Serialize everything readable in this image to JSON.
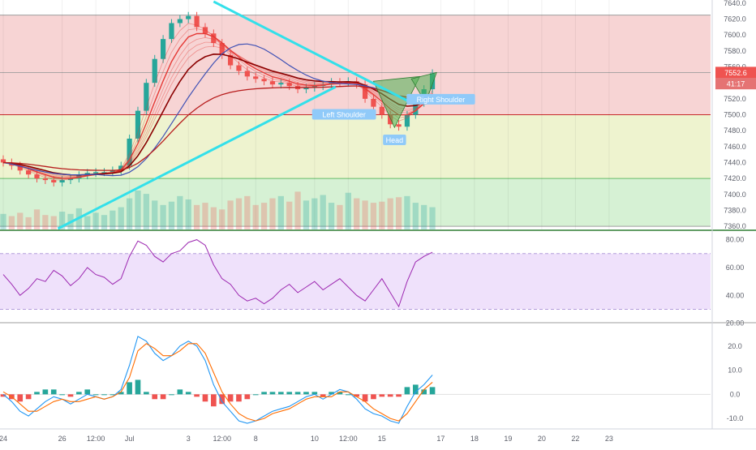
{
  "colors": {
    "zone_red": "#f7d4d4",
    "zone_yellow": "#eef3cf",
    "zone_green": "#d6f1d4",
    "trendline": "#33e0ea",
    "ema_fast": "#e53935",
    "ema_slow": "#8b0000",
    "sma_blue": "#3f51b5",
    "candle_up": "#26a69a",
    "candle_down": "#ef5350",
    "rsi_line": "#9c27b0",
    "rsi_band": "#efe1fb",
    "macd_line": "#2196f3",
    "signal_line": "#ff6d00",
    "price_label_bg": "#ef5350",
    "pattern_fill": "#4caf50",
    "annotation_bg": "#90caf9"
  },
  "chart_data": [
    {
      "type": "candlestick",
      "panel": "price",
      "y_ticks": [
        "7640.0",
        "7620.0",
        "7600.0",
        "7580.0",
        "7560.0",
        "7540.0",
        "7520.0",
        "7500.0",
        "7480.0",
        "7460.0",
        "7440.0",
        "7420.0",
        "7400.0",
        "7380.0",
        "7360.0"
      ],
      "ylim": [
        7356,
        7644
      ],
      "x_ticks": [
        {
          "label": "24",
          "i": 0
        },
        {
          "label": "26",
          "i": 7
        },
        {
          "label": "12:00",
          "i": 11
        },
        {
          "label": "Jul",
          "i": 15
        },
        {
          "label": "3",
          "i": 22
        },
        {
          "label": "12:00",
          "i": 26
        },
        {
          "label": "8",
          "i": 30
        },
        {
          "label": "10",
          "i": 37
        },
        {
          "label": "12:00",
          "i": 41
        },
        {
          "label": "15",
          "i": 45
        },
        {
          "label": "17",
          "i": 52
        },
        {
          "label": "18",
          "i": 56
        },
        {
          "label": "19",
          "i": 60
        },
        {
          "label": "20",
          "i": 64
        },
        {
          "label": "22",
          "i": 68
        },
        {
          "label": "23",
          "i": 72
        }
      ],
      "x_count": 76,
      "zones": [
        {
          "from": 7500,
          "to": 7625,
          "color": "zone_red"
        },
        {
          "from": 7420,
          "to": 7500,
          "color": "zone_yellow"
        },
        {
          "from": 7360,
          "to": 7420,
          "color": "zone_green"
        }
      ],
      "horizontal_lines": [
        7625,
        7553,
        7500,
        7420,
        7360
      ],
      "price_labels": [
        "7552.6",
        "41:17"
      ],
      "close": [
        7440,
        7436,
        7430,
        7425,
        7420,
        7418,
        7415,
        7418,
        7420,
        7424,
        7427,
        7428,
        7428,
        7430,
        7436,
        7470,
        7505,
        7540,
        7570,
        7595,
        7615,
        7620,
        7624,
        7610,
        7602,
        7590,
        7575,
        7562,
        7555,
        7548,
        7545,
        7542,
        7538,
        7540,
        7536,
        7532,
        7534,
        7536,
        7538,
        7541,
        7540,
        7542,
        7538,
        7520,
        7510,
        7500,
        7488,
        7485,
        7500,
        7515,
        7532,
        7552
      ],
      "trendlines": [
        {
          "from": [
            6.5,
            7357
          ],
          "to": [
            39.5,
            7535
          ]
        },
        {
          "from": [
            25,
            7642
          ],
          "to": [
            48.5,
            7515
          ]
        }
      ],
      "pattern": {
        "name": "Inverse head and shoulders",
        "labels": [
          "Left Shoulder",
          "Head",
          "Right Shoulder"
        ]
      },
      "volume": [
        14,
        12,
        15,
        11,
        18,
        13,
        12,
        16,
        14,
        19,
        12,
        15,
        13,
        17,
        20,
        28,
        35,
        32,
        26,
        22,
        25,
        30,
        27,
        22,
        24,
        20,
        18,
        26,
        28,
        30,
        22,
        24,
        28,
        30,
        25,
        34,
        26,
        28,
        31,
        24,
        22,
        33,
        28,
        26,
        24,
        25,
        28,
        29,
        30,
        24,
        22,
        20
      ]
    },
    {
      "type": "line",
      "panel": "rsi",
      "y_ticks": [
        "80.00",
        "60.00",
        "40.00",
        "20.00"
      ],
      "ylim": [
        21,
        85
      ],
      "band": [
        30,
        70
      ],
      "values": [
        55,
        48,
        40,
        45,
        52,
        50,
        58,
        54,
        47,
        52,
        60,
        55,
        53,
        48,
        52,
        68,
        79,
        76,
        68,
        64,
        70,
        72,
        78,
        80,
        76,
        62,
        52,
        48,
        40,
        36,
        38,
        34,
        38,
        44,
        48,
        42,
        46,
        50,
        44,
        48,
        52,
        46,
        40,
        36,
        44,
        52,
        42,
        32,
        50,
        64,
        68,
        71
      ]
    },
    {
      "type": "line",
      "panel": "macd",
      "y_ticks": [
        "20.0",
        "10.0",
        "0.0",
        "-10.0"
      ],
      "ylim": [
        -14,
        29
      ],
      "series": [
        {
          "color_key": "macd_line",
          "values": [
            0,
            -3,
            -7,
            -9,
            -6,
            -3,
            -1,
            -2,
            -4,
            -2,
            0,
            -1,
            -2,
            -1,
            2,
            12,
            24,
            22,
            17,
            14,
            16,
            20,
            22,
            20,
            14,
            4,
            -3,
            -7,
            -11,
            -12,
            -11,
            -9,
            -7,
            -6,
            -5,
            -3,
            -1,
            0,
            -2,
            0,
            2,
            1,
            -2,
            -6,
            -8,
            -9,
            -11,
            -12,
            -5,
            1,
            4,
            8
          ]
        },
        {
          "color_key": "signal_line",
          "values": [
            1,
            -1,
            -4,
            -7,
            -7,
            -5,
            -3,
            -2,
            -3,
            -3,
            -2,
            -1,
            -2,
            -1,
            1,
            7,
            18,
            21,
            19,
            16,
            16,
            18,
            21,
            21,
            17,
            9,
            1,
            -4,
            -8,
            -10,
            -11,
            -10,
            -8,
            -7,
            -6,
            -4,
            -2,
            -1,
            -1,
            -1,
            1,
            1,
            -1,
            -3,
            -6,
            -8,
            -10,
            -11,
            -8,
            -3,
            2,
            5
          ]
        }
      ],
      "histogram": [
        -1,
        -2,
        -3,
        -2,
        1,
        2,
        2,
        0,
        -1,
        1,
        2,
        0,
        0,
        0,
        1,
        5,
        6,
        1,
        -2,
        -2,
        0,
        2,
        1,
        -1,
        -3,
        -5,
        -4,
        -3,
        -3,
        -2,
        0,
        1,
        1,
        1,
        1,
        1,
        1,
        1,
        -1,
        1,
        1,
        0,
        -1,
        -3,
        -2,
        -1,
        -1,
        -1,
        3,
        4,
        2,
        3
      ]
    }
  ]
}
